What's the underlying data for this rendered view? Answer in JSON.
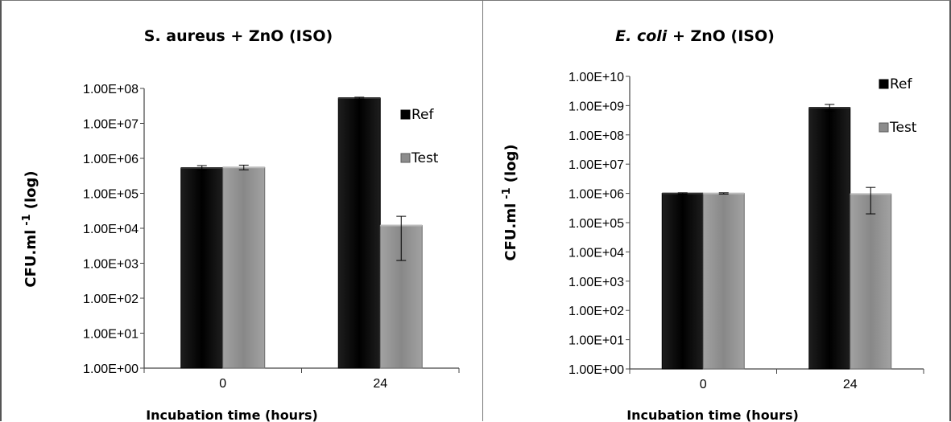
{
  "chart_data": [
    {
      "type": "bar",
      "scale": "log",
      "title": "S. aureus + ZnO (ISO)",
      "title_parts": [
        {
          "text": "S. aureus + ZnO (ISO)",
          "italic": false
        }
      ],
      "xlabel": "Incubation time (hours)",
      "ylabel": "CFU.ml -1 (log)",
      "ylabel_main": "CFU.ml",
      "ylabel_sup": "-1",
      "ylabel_tail": "(log)",
      "categories": [
        "0",
        "24"
      ],
      "ylim": [
        1,
        100000000
      ],
      "yticks": [
        "1.00E+00",
        "1.00E+01",
        "1.00E+02",
        "1.00E+03",
        "1.00E+04",
        "1.00E+05",
        "1.00E+06",
        "1.00E+07",
        "1.00E+08"
      ],
      "legend_position": "top-right",
      "series": [
        {
          "name": "Ref",
          "color": "#000000",
          "values": [
            530000,
            53000000
          ],
          "err_low": [
            450000,
            50000000
          ],
          "err_high": [
            620000,
            56000000
          ]
        },
        {
          "name": "Test",
          "color": "#8c8c8c",
          "values": [
            550000,
            12000
          ],
          "err_low": [
            470000,
            1200
          ],
          "err_high": [
            640000,
            22000
          ]
        }
      ]
    },
    {
      "type": "bar",
      "scale": "log",
      "title": "E. coli + ZnO (ISO)",
      "title_parts": [
        {
          "text": "E. coli",
          "italic": true
        },
        {
          "text": " + ZnO (ISO)",
          "italic": false
        }
      ],
      "xlabel": "Incubation time (hours)",
      "ylabel": "CFU.ml -1 (log)",
      "ylabel_main": "CFU.ml",
      "ylabel_sup": "-1",
      "ylabel_tail": "(log)",
      "categories": [
        "0",
        "24"
      ],
      "ylim": [
        1,
        10000000000
      ],
      "yticks": [
        "1.00E+00",
        "1.00E+01",
        "1.00E+02",
        "1.00E+03",
        "1.00E+04",
        "1.00E+05",
        "1.00E+06",
        "1.00E+07",
        "1.00E+08",
        "1.00E+09",
        "1.00E+10"
      ],
      "legend_position": "top-right",
      "series": [
        {
          "name": "Ref",
          "color": "#000000",
          "values": [
            1000000,
            850000000
          ],
          "err_low": [
            950000,
            650000000
          ],
          "err_high": [
            1050000,
            1100000000
          ]
        },
        {
          "name": "Test",
          "color": "#8c8c8c",
          "values": [
            1000000,
            950000
          ],
          "err_low": [
            950000,
            200000
          ],
          "err_high": [
            1050000,
            1600000
          ]
        }
      ]
    }
  ]
}
